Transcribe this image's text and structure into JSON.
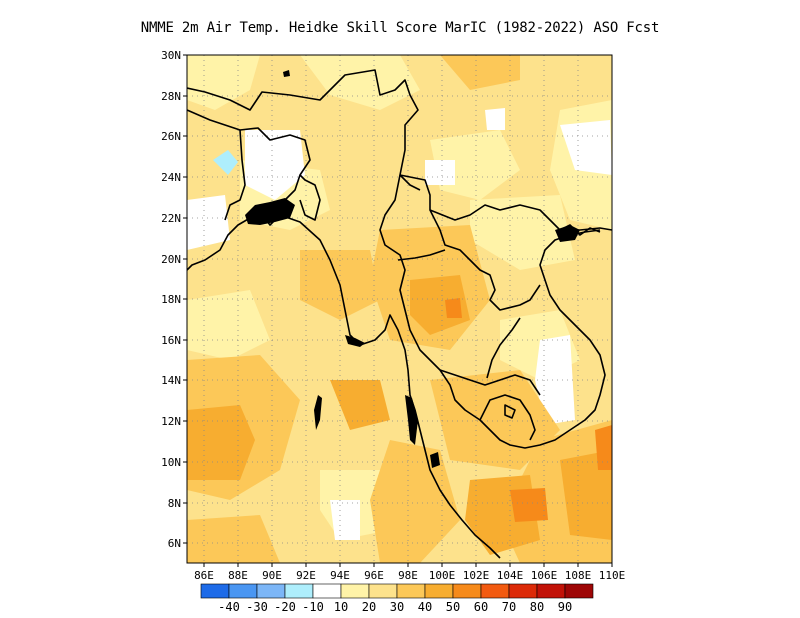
{
  "title": "NMME  2m Air Temp. Heidke Skill Score MarIC (1982-2022) ASO Fcst",
  "map": {
    "lat_labels": [
      "30N",
      "28N",
      "26N",
      "24N",
      "22N",
      "20N",
      "18N",
      "16N",
      "14N",
      "12N",
      "10N",
      "8N",
      "6N"
    ],
    "lon_labels": [
      "86E",
      "88E",
      "90E",
      "92E",
      "94E",
      "96E",
      "98E",
      "100E",
      "102E",
      "104E",
      "106E",
      "108E",
      "110E"
    ],
    "lat_range": [
      5,
      30
    ],
    "lon_range": [
      85,
      110
    ],
    "grid": "dotted",
    "colors": {
      "base": "#fde28c",
      "light": "#fff3a8",
      "white": "#ffffff",
      "orange": "#fcc858",
      "dark_orange": "#f7ad30",
      "red_orange": "#f68a1a",
      "cyan": "#aeeefc"
    }
  },
  "colorbar": {
    "labels": [
      "-40",
      "-30",
      "-20",
      "-10",
      "10",
      "20",
      "30",
      "40",
      "50",
      "60",
      "70",
      "80",
      "90"
    ],
    "colors": [
      "#1e6be8",
      "#4a96f2",
      "#7cb6f7",
      "#aeeefc",
      "#ffffff",
      "#fff3a8",
      "#fde28c",
      "#fcc858",
      "#f7ad30",
      "#f68a1a",
      "#f25a10",
      "#dc2a08",
      "#c21208",
      "#9e0606"
    ]
  }
}
